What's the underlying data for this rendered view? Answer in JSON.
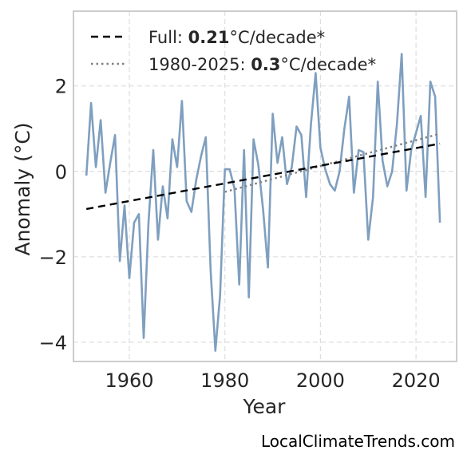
{
  "credit": "LocalClimateTrends.com",
  "chart_data": {
    "type": "line",
    "title": "",
    "xlabel": "Year",
    "ylabel": "Anomaly (°C)",
    "xlim": [
      1948.3,
      2028.5
    ],
    "ylim": [
      -4.45,
      3.75
    ],
    "x_ticks": [
      1960,
      1980,
      2000,
      2020
    ],
    "y_ticks": [
      -4,
      -2,
      0,
      2
    ],
    "x_tick_labels": [
      "1960",
      "1980",
      "2000",
      "2020"
    ],
    "y_tick_labels": [
      "−4",
      "−2",
      "0",
      "2"
    ],
    "grid": true,
    "legend_position": "top-left",
    "colors": {
      "anomaly": "#7f9fbf",
      "trend_full": "#000000",
      "trend_recent": "#808080",
      "grid": "#dddddd",
      "frame": "#cccccc"
    },
    "legend": [
      {
        "id": "full",
        "style": "dashed",
        "prefix": "Full: ",
        "value": "0.21",
        "suffix": "°C/decade*"
      },
      {
        "id": "recent",
        "style": "dotted",
        "prefix": "1980-2025: ",
        "value": "0.3",
        "suffix": "°C/decade*"
      }
    ],
    "series": [
      {
        "id": "anomaly",
        "x": [
          1951,
          1952,
          1953,
          1954,
          1955,
          1956,
          1957,
          1958,
          1959,
          1960,
          1961,
          1962,
          1963,
          1964,
          1965,
          1966,
          1967,
          1968,
          1969,
          1970,
          1971,
          1972,
          1973,
          1974,
          1975,
          1976,
          1977,
          1978,
          1979,
          1980,
          1981,
          1982,
          1983,
          1984,
          1985,
          1986,
          1987,
          1988,
          1989,
          1990,
          1991,
          1992,
          1993,
          1994,
          1995,
          1996,
          1997,
          1998,
          1999,
          2000,
          2001,
          2002,
          2003,
          2004,
          2005,
          2006,
          2007,
          2008,
          2009,
          2010,
          2011,
          2012,
          2013,
          2014,
          2015,
          2016,
          2017,
          2018,
          2019,
          2020,
          2021,
          2022,
          2023,
          2024,
          2025
        ],
        "y": [
          -0.1,
          1.6,
          0.1,
          1.2,
          -0.5,
          0.2,
          0.85,
          -2.1,
          -0.8,
          -2.5,
          -1.2,
          -1.0,
          -3.9,
          -1.2,
          0.5,
          -1.6,
          -0.35,
          -1.1,
          0.75,
          0.1,
          1.65,
          -0.7,
          -0.95,
          -0.2,
          0.35,
          0.8,
          -2.3,
          -4.2,
          -2.9,
          0.05,
          0.05,
          -0.4,
          -2.65,
          0.5,
          -2.95,
          0.75,
          0.15,
          -0.9,
          -2.25,
          1.35,
          0.2,
          0.8,
          -0.3,
          0.1,
          1.05,
          0.85,
          -0.6,
          1.1,
          2.3,
          0.55,
          0.05,
          -0.3,
          -0.45,
          0.0,
          1.0,
          1.75,
          -0.5,
          0.5,
          0.45,
          -1.6,
          -0.6,
          2.1,
          0.25,
          -0.35,
          0.0,
          1.1,
          2.75,
          -0.45,
          0.5,
          0.9,
          1.3,
          -0.6,
          2.1,
          1.75,
          -1.2
        ]
      },
      {
        "id": "trend_full",
        "x": [
          1951,
          2025
        ],
        "y": [
          -0.88,
          0.65
        ]
      },
      {
        "id": "trend_recent",
        "x": [
          1980,
          2025
        ],
        "y": [
          -0.48,
          0.88
        ]
      }
    ]
  }
}
